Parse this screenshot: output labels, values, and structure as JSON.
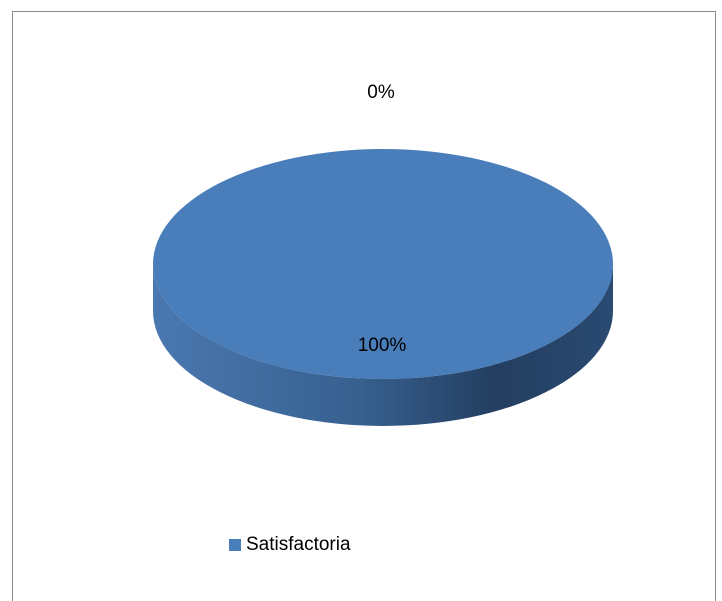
{
  "chart_data": {
    "type": "pie",
    "style": "3d",
    "title": "",
    "slices": [
      {
        "name": "Satisfactoria",
        "value": 100,
        "label": "100%",
        "color": "#4a7ebb"
      },
      {
        "name": "",
        "value": 0,
        "label": "0%",
        "color": "#c0504d"
      }
    ],
    "legend": {
      "placement": "bottom",
      "entries": [
        {
          "label": "Satisfactoria",
          "color": "#4a7ebb"
        }
      ]
    }
  }
}
